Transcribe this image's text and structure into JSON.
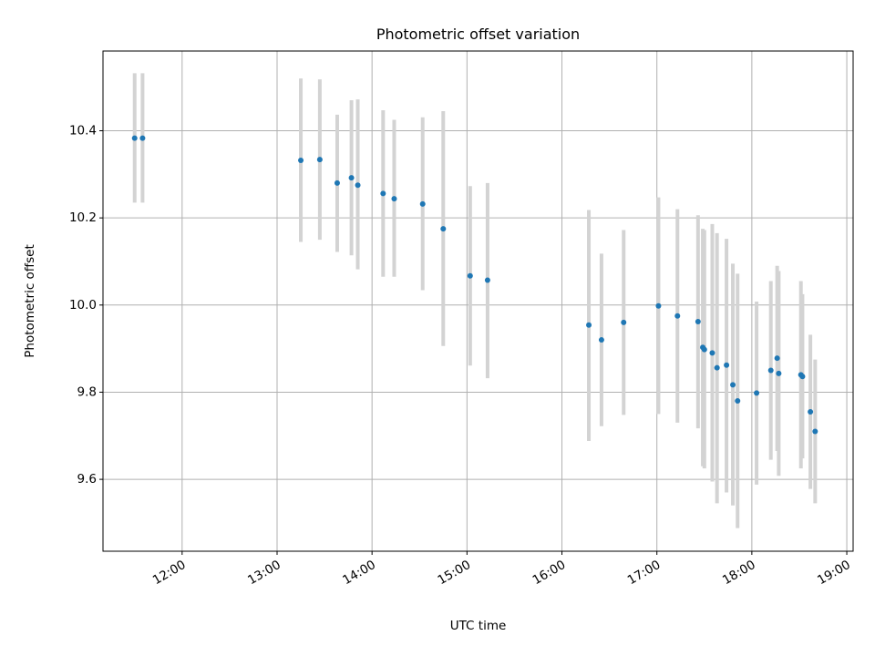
{
  "chart_data": {
    "type": "scatter",
    "title": "Photometric offset variation",
    "xlabel": "UTC time",
    "ylabel": "Photometric offset",
    "x_is_time": true,
    "xlim": [
      "11:10",
      "19:04"
    ],
    "ylim": [
      9.435,
      10.583
    ],
    "x_ticks": [
      "12:00",
      "13:00",
      "14:00",
      "15:00",
      "16:00",
      "17:00",
      "18:00",
      "19:00"
    ],
    "y_ticks": [
      "9.6",
      "9.8",
      "10.0",
      "10.2",
      "10.4"
    ],
    "grid": true,
    "point_color": "#1f77b4",
    "errorbar_color": "#d3d3d3",
    "points": [
      {
        "t": "11:30",
        "y": 10.383,
        "lo": 10.235,
        "hi": 10.532
      },
      {
        "t": "11:35",
        "y": 10.383,
        "lo": 10.235,
        "hi": 10.532
      },
      {
        "t": "13:15",
        "y": 10.332,
        "lo": 10.145,
        "hi": 10.52
      },
      {
        "t": "13:27",
        "y": 10.334,
        "lo": 10.15,
        "hi": 10.518
      },
      {
        "t": "13:38",
        "y": 10.28,
        "lo": 10.122,
        "hi": 10.437
      },
      {
        "t": "13:47",
        "y": 10.292,
        "lo": 10.114,
        "hi": 10.47
      },
      {
        "t": "13:51",
        "y": 10.275,
        "lo": 10.082,
        "hi": 10.472
      },
      {
        "t": "14:07",
        "y": 10.256,
        "lo": 10.065,
        "hi": 10.447
      },
      {
        "t": "14:14",
        "y": 10.244,
        "lo": 10.065,
        "hi": 10.425
      },
      {
        "t": "14:32",
        "y": 10.232,
        "lo": 10.034,
        "hi": 10.431
      },
      {
        "t": "14:45",
        "y": 10.175,
        "lo": 9.906,
        "hi": 10.445
      },
      {
        "t": "15:02",
        "y": 10.067,
        "lo": 9.861,
        "hi": 10.273
      },
      {
        "t": "15:13",
        "y": 10.057,
        "lo": 9.832,
        "hi": 10.28
      },
      {
        "t": "16:17",
        "y": 9.954,
        "lo": 9.688,
        "hi": 10.218
      },
      {
        "t": "16:25",
        "y": 9.92,
        "lo": 9.722,
        "hi": 10.118
      },
      {
        "t": "16:39",
        "y": 9.96,
        "lo": 9.748,
        "hi": 10.172
      },
      {
        "t": "17:01",
        "y": 9.998,
        "lo": 9.75,
        "hi": 10.247
      },
      {
        "t": "17:13",
        "y": 9.975,
        "lo": 9.73,
        "hi": 10.22
      },
      {
        "t": "17:26",
        "y": 9.962,
        "lo": 9.717,
        "hi": 10.206
      },
      {
        "t": "17:29",
        "y": 9.903,
        "lo": 9.63,
        "hi": 10.175
      },
      {
        "t": "17:30",
        "y": 9.898,
        "lo": 9.625,
        "hi": 10.172
      },
      {
        "t": "17:35",
        "y": 9.89,
        "lo": 9.595,
        "hi": 10.186
      },
      {
        "t": "17:38",
        "y": 9.856,
        "lo": 9.545,
        "hi": 10.165
      },
      {
        "t": "17:44",
        "y": 9.862,
        "lo": 9.57,
        "hi": 10.152
      },
      {
        "t": "17:48",
        "y": 9.817,
        "lo": 9.54,
        "hi": 10.095
      },
      {
        "t": "17:51",
        "y": 9.78,
        "lo": 9.488,
        "hi": 10.072
      },
      {
        "t": "18:03",
        "y": 9.798,
        "lo": 9.588,
        "hi": 10.008
      },
      {
        "t": "18:12",
        "y": 9.85,
        "lo": 9.645,
        "hi": 10.055
      },
      {
        "t": "18:16",
        "y": 9.878,
        "lo": 9.665,
        "hi": 10.09
      },
      {
        "t": "18:17",
        "y": 9.843,
        "lo": 9.608,
        "hi": 10.078
      },
      {
        "t": "18:31",
        "y": 9.84,
        "lo": 9.625,
        "hi": 10.055
      },
      {
        "t": "18:32",
        "y": 9.836,
        "lo": 9.648,
        "hi": 10.025
      },
      {
        "t": "18:37",
        "y": 9.755,
        "lo": 9.578,
        "hi": 9.932
      },
      {
        "t": "18:40",
        "y": 9.71,
        "lo": 9.545,
        "hi": 9.875
      }
    ]
  }
}
